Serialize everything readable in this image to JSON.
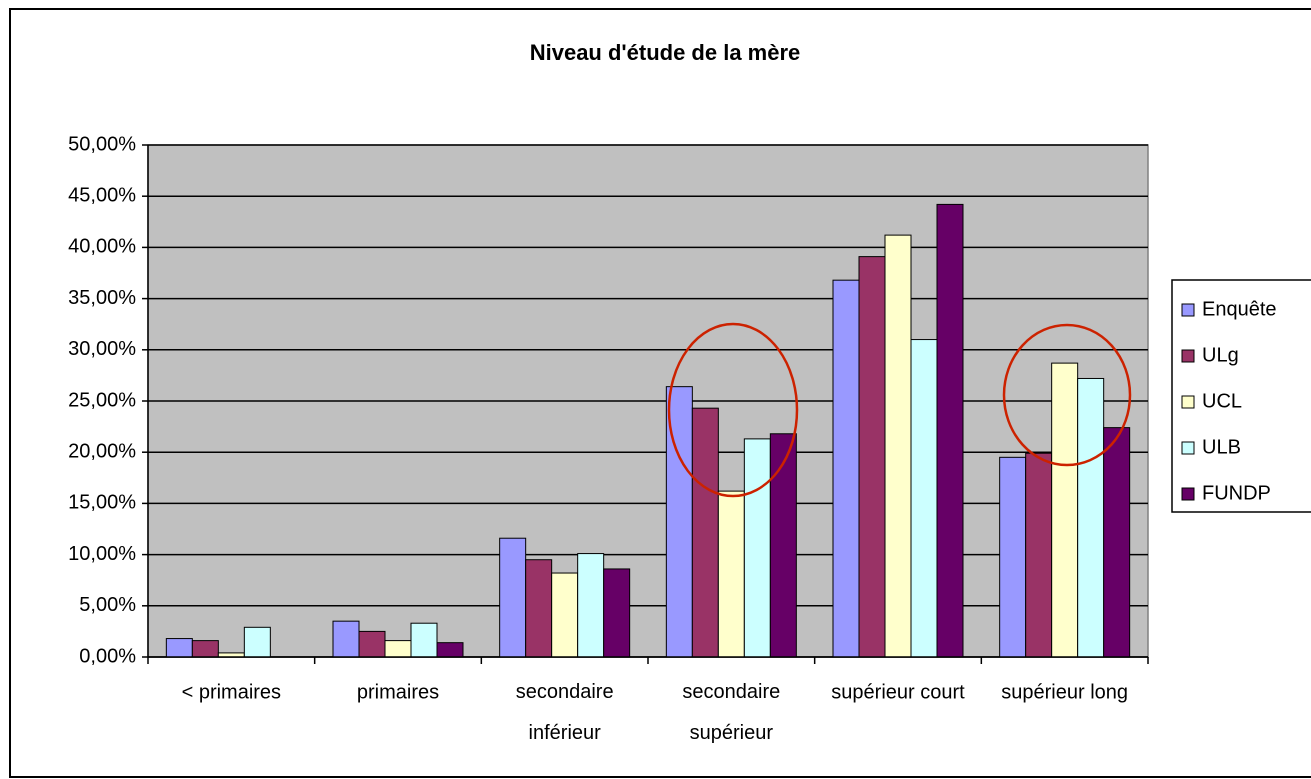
{
  "chart_data": {
    "type": "bar",
    "title": "Niveau d'étude de la mère",
    "categories": [
      "< primaires",
      "primaires",
      "secondaire inférieur",
      "secondaire supérieur",
      "supérieur court",
      "supérieur long"
    ],
    "series": [
      {
        "name": "Enquête",
        "color": "#9999ff",
        "values": [
          1.8,
          3.5,
          11.6,
          26.4,
          36.8,
          19.5
        ]
      },
      {
        "name": "ULg",
        "color": "#993366",
        "values": [
          1.6,
          2.5,
          9.5,
          24.3,
          39.1,
          19.9
        ]
      },
      {
        "name": "UCL",
        "color": "#ffffcc",
        "values": [
          0.4,
          1.6,
          8.2,
          16.2,
          41.2,
          28.7
        ]
      },
      {
        "name": "ULB",
        "color": "#ccffff",
        "values": [
          2.9,
          3.3,
          10.1,
          21.3,
          31.0,
          27.2
        ]
      },
      {
        "name": "FUNDP",
        "color": "#660066",
        "values": [
          0,
          1.4,
          8.6,
          21.8,
          44.2,
          22.4
        ]
      }
    ],
    "ylim": [
      0,
      50
    ],
    "yticks": [
      {
        "value": 0,
        "label": "0,00%"
      },
      {
        "value": 5,
        "label": "5,00%"
      },
      {
        "value": 10,
        "label": "10,00%"
      },
      {
        "value": 15,
        "label": "15,00%"
      },
      {
        "value": 20,
        "label": "20,00%"
      },
      {
        "value": 25,
        "label": "25,00%"
      },
      {
        "value": 30,
        "label": "30,00%"
      },
      {
        "value": 35,
        "label": "35,00%"
      },
      {
        "value": 40,
        "label": "40,00%"
      },
      {
        "value": 45,
        "label": "45,00%"
      },
      {
        "value": 50,
        "label": "50,00%"
      }
    ],
    "grid": true,
    "legend": "right"
  }
}
